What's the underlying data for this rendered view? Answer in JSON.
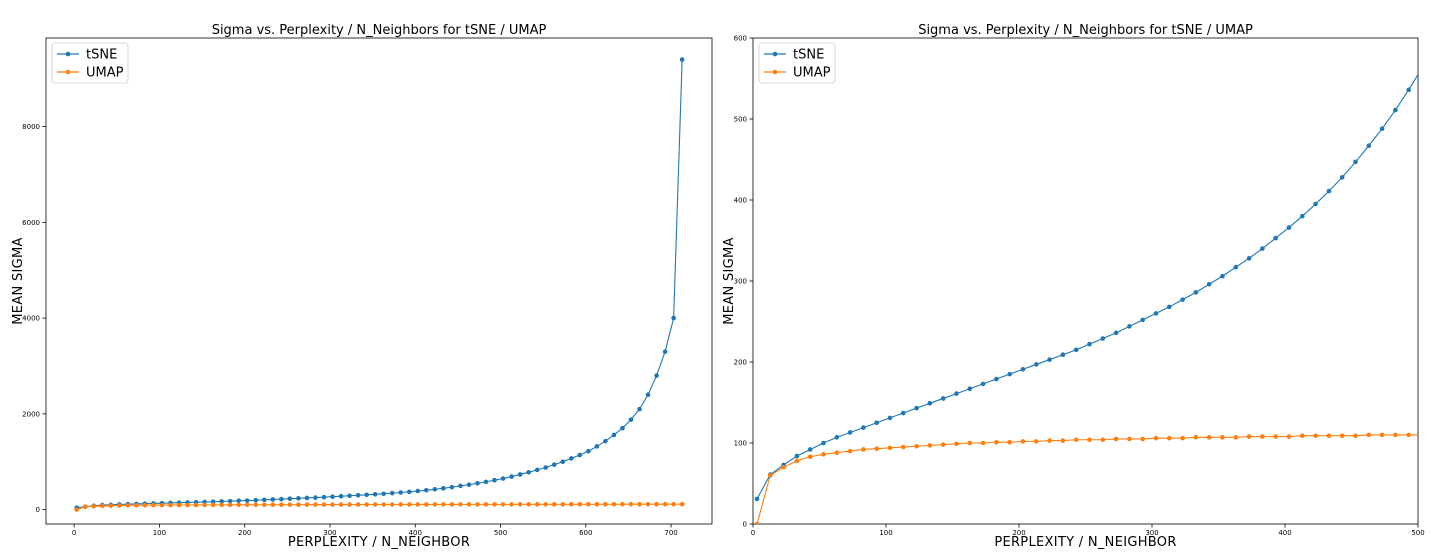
{
  "chart_data": [
    {
      "type": "line",
      "title": "Sigma vs. Perplexity / N_Neighbors for tSNE / UMAP",
      "xlabel": "PERPLEXITY / N_NEIGHBOR",
      "ylabel": "MEAN SIGMA",
      "xlim": [
        -33,
        748
      ],
      "ylim": [
        -300,
        9850
      ],
      "xticks": [
        0,
        100,
        200,
        300,
        400,
        500,
        600,
        700
      ],
      "yticks": [
        0,
        2000,
        4000,
        6000,
        8000
      ],
      "grid": false,
      "legend": "top-left",
      "series": [
        {
          "name": "tSNE",
          "color": "#1f77b4",
          "x": [
            3,
            13,
            23,
            33,
            43,
            53,
            63,
            73,
            83,
            93,
            103,
            113,
            123,
            133,
            143,
            153,
            163,
            173,
            183,
            193,
            203,
            213,
            223,
            233,
            243,
            253,
            263,
            273,
            283,
            293,
            303,
            313,
            323,
            333,
            343,
            353,
            363,
            373,
            383,
            393,
            403,
            413,
            423,
            433,
            443,
            453,
            463,
            473,
            483,
            493,
            503,
            513,
            523,
            533,
            543,
            553,
            563,
            573,
            583,
            593,
            603,
            613,
            623,
            633,
            643,
            653,
            663,
            673,
            683,
            693,
            703,
            713
          ],
          "y": [
            40,
            60,
            80,
            95,
            100,
            110,
            115,
            120,
            125,
            130,
            135,
            140,
            145,
            150,
            155,
            160,
            165,
            172,
            178,
            185,
            190,
            197,
            205,
            213,
            220,
            228,
            236,
            244,
            252,
            260,
            270,
            280,
            290,
            300,
            310,
            320,
            332,
            345,
            358,
            372,
            388,
            405,
            425,
            445,
            470,
            495,
            520,
            550,
            580,
            615,
            650,
            690,
            735,
            780,
            830,
            880,
            940,
            1000,
            1070,
            1140,
            1220,
            1320,
            1430,
            1560,
            1700,
            1880,
            2100,
            2400,
            2800,
            3300,
            4000,
            9400
          ]
        },
        {
          "name": "UMAP",
          "color": "#ff7f0e",
          "x": [
            3,
            13,
            23,
            33,
            43,
            53,
            63,
            73,
            83,
            93,
            103,
            113,
            123,
            133,
            143,
            153,
            163,
            173,
            183,
            193,
            203,
            213,
            223,
            233,
            243,
            253,
            263,
            273,
            283,
            293,
            303,
            313,
            323,
            333,
            343,
            353,
            363,
            373,
            383,
            393,
            403,
            413,
            423,
            433,
            443,
            453,
            463,
            473,
            483,
            493,
            503,
            513,
            523,
            533,
            543,
            553,
            563,
            573,
            583,
            593,
            603,
            613,
            623,
            633,
            643,
            653,
            663,
            673,
            683,
            693,
            703,
            713
          ],
          "y": [
            0,
            60,
            70,
            78,
            83,
            86,
            88,
            90,
            92,
            93,
            94,
            95,
            96,
            97,
            98,
            99,
            99,
            100,
            100,
            101,
            101,
            102,
            102,
            103,
            103,
            104,
            104,
            104,
            105,
            105,
            105,
            106,
            106,
            106,
            107,
            107,
            107,
            107,
            108,
            108,
            108,
            108,
            109,
            109,
            109,
            109,
            109,
            110,
            110,
            110,
            110,
            110,
            111,
            111,
            111,
            111,
            111,
            111,
            112,
            112,
            112,
            112,
            112,
            112,
            113,
            113,
            113,
            113,
            113,
            113,
            113,
            113
          ]
        }
      ]
    },
    {
      "type": "line",
      "title": "Sigma vs. Perplexity / N_Neighbors for tSNE / UMAP",
      "xlabel": "PERPLEXITY / N_NEIGHBOR",
      "ylabel": "MEAN SIGMA",
      "xlim": [
        0,
        500
      ],
      "ylim": [
        0,
        600
      ],
      "xticks": [
        0,
        100,
        200,
        300,
        400,
        500
      ],
      "yticks": [
        0,
        100,
        200,
        300,
        400,
        500,
        600
      ],
      "grid": false,
      "legend": "top-left",
      "series": [
        {
          "name": "tSNE",
          "color": "#1f77b4",
          "x": [
            3,
            13,
            23,
            33,
            43,
            53,
            63,
            73,
            83,
            93,
            103,
            113,
            123,
            133,
            143,
            153,
            163,
            173,
            183,
            193,
            203,
            213,
            223,
            233,
            243,
            253,
            263,
            273,
            283,
            293,
            303,
            313,
            323,
            333,
            343,
            353,
            363,
            373,
            383,
            393,
            403,
            413,
            423,
            433,
            443,
            453,
            463,
            473,
            483,
            493,
            503
          ],
          "y": [
            31,
            61,
            73,
            84,
            92,
            100,
            107,
            113,
            119,
            125,
            131,
            137,
            143,
            149,
            155,
            161,
            167,
            173,
            179,
            185,
            191,
            197,
            203,
            209,
            215,
            222,
            229,
            236,
            244,
            252,
            260,
            268,
            277,
            286,
            296,
            306,
            317,
            328,
            340,
            353,
            366,
            380,
            395,
            411,
            428,
            447,
            467,
            488,
            511,
            536,
            563
          ]
        },
        {
          "name": "UMAP",
          "color": "#ff7f0e",
          "x": [
            3,
            13,
            23,
            33,
            43,
            53,
            63,
            73,
            83,
            93,
            103,
            113,
            123,
            133,
            143,
            153,
            163,
            173,
            183,
            193,
            203,
            213,
            223,
            233,
            243,
            253,
            263,
            273,
            283,
            293,
            303,
            313,
            323,
            333,
            343,
            353,
            363,
            373,
            383,
            393,
            403,
            413,
            423,
            433,
            443,
            453,
            463,
            473,
            483,
            493,
            503
          ],
          "y": [
            0,
            60,
            70,
            78,
            83,
            86,
            88,
            90,
            92,
            93,
            94,
            95,
            96,
            97,
            98,
            99,
            100,
            100,
            101,
            101,
            102,
            102,
            103,
            103,
            104,
            104,
            104,
            105,
            105,
            105,
            106,
            106,
            106,
            107,
            107,
            107,
            107,
            108,
            108,
            108,
            108,
            109,
            109,
            109,
            109,
            109,
            110,
            110,
            110,
            110,
            110
          ]
        }
      ]
    }
  ]
}
